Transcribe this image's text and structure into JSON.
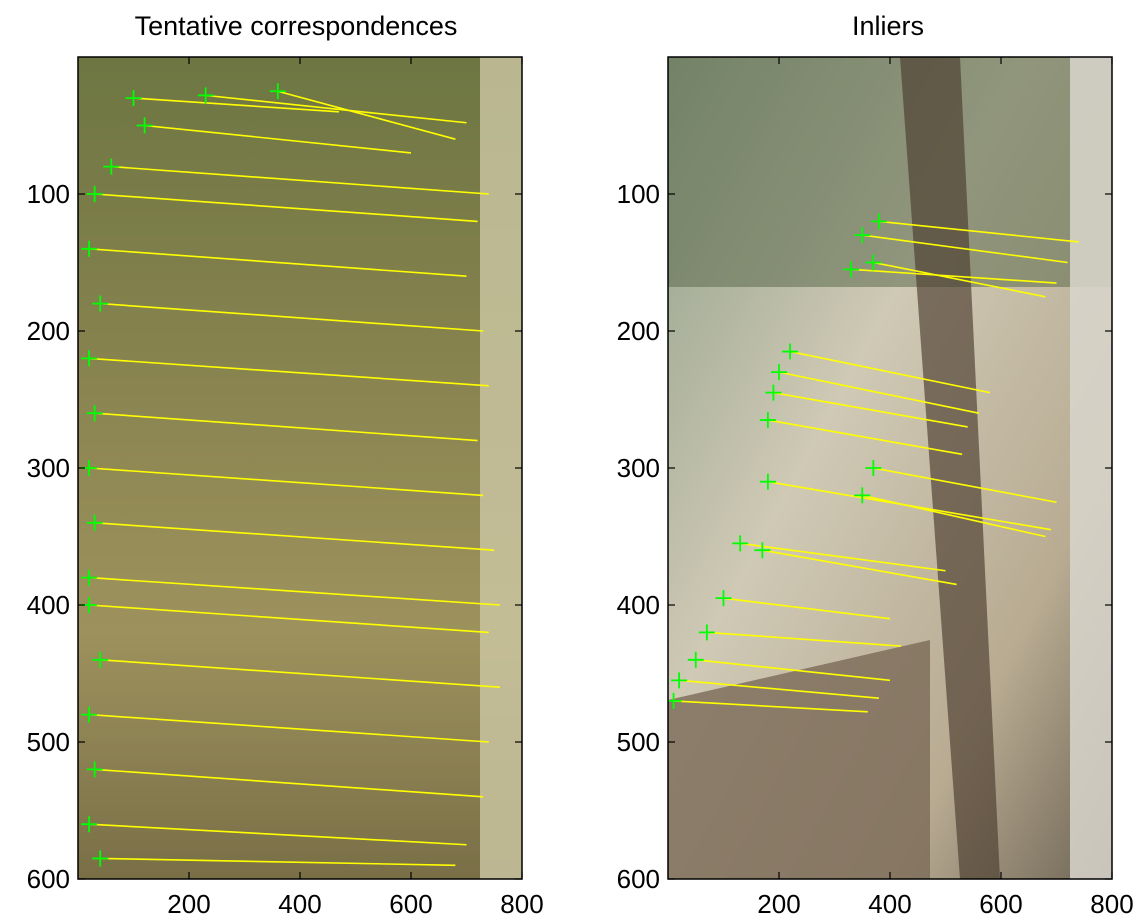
{
  "chart_data": [
    {
      "type": "scatter",
      "title": "Tentative correspondences",
      "xlabel": "",
      "ylabel": "",
      "xlim": [
        0,
        800
      ],
      "ylim": [
        600,
        0
      ],
      "xticks": [
        200,
        400,
        600,
        800
      ],
      "yticks": [
        100,
        200,
        300,
        400,
        500,
        600
      ],
      "image_extent": {
        "x": [
          0,
          800
        ],
        "y": [
          0,
          600
        ]
      },
      "marker_color": "#00ff00",
      "line_color": "#ffff00",
      "matches": [
        {
          "x1": 100,
          "y1": 30,
          "x2": 470,
          "y2": 40
        },
        {
          "x1": 230,
          "y1": 28,
          "x2": 700,
          "y2": 48
        },
        {
          "x1": 360,
          "y1": 25,
          "x2": 680,
          "y2": 60
        },
        {
          "x1": 120,
          "y1": 50,
          "x2": 600,
          "y2": 70
        },
        {
          "x1": 60,
          "y1": 80,
          "x2": 740,
          "y2": 100
        },
        {
          "x1": 30,
          "y1": 100,
          "x2": 720,
          "y2": 120
        },
        {
          "x1": 20,
          "y1": 140,
          "x2": 700,
          "y2": 160
        },
        {
          "x1": 40,
          "y1": 180,
          "x2": 730,
          "y2": 200
        },
        {
          "x1": 20,
          "y1": 220,
          "x2": 740,
          "y2": 240
        },
        {
          "x1": 30,
          "y1": 260,
          "x2": 720,
          "y2": 280
        },
        {
          "x1": 20,
          "y1": 300,
          "x2": 730,
          "y2": 320
        },
        {
          "x1": 30,
          "y1": 340,
          "x2": 750,
          "y2": 360
        },
        {
          "x1": 20,
          "y1": 380,
          "x2": 760,
          "y2": 400
        },
        {
          "x1": 20,
          "y1": 400,
          "x2": 740,
          "y2": 420
        },
        {
          "x1": 40,
          "y1": 440,
          "x2": 760,
          "y2": 460
        },
        {
          "x1": 20,
          "y1": 480,
          "x2": 740,
          "y2": 500
        },
        {
          "x1": 30,
          "y1": 520,
          "x2": 730,
          "y2": 540
        },
        {
          "x1": 20,
          "y1": 560,
          "x2": 700,
          "y2": 575
        },
        {
          "x1": 40,
          "y1": 585,
          "x2": 680,
          "y2": 590
        }
      ]
    },
    {
      "type": "scatter",
      "title": "Inliers",
      "xlabel": "",
      "ylabel": "",
      "xlim": [
        0,
        800
      ],
      "ylim": [
        600,
        0
      ],
      "xticks": [
        200,
        400,
        600,
        800
      ],
      "yticks": [
        100,
        200,
        300,
        400,
        500,
        600
      ],
      "image_extent": {
        "x": [
          0,
          800
        ],
        "y": [
          0,
          600
        ]
      },
      "marker_color": "#00ff00",
      "line_color": "#ffff00",
      "matches": [
        {
          "x1": 380,
          "y1": 120,
          "x2": 740,
          "y2": 135
        },
        {
          "x1": 350,
          "y1": 130,
          "x2": 720,
          "y2": 150
        },
        {
          "x1": 330,
          "y1": 155,
          "x2": 700,
          "y2": 165
        },
        {
          "x1": 370,
          "y1": 150,
          "x2": 680,
          "y2": 175
        },
        {
          "x1": 220,
          "y1": 215,
          "x2": 580,
          "y2": 245
        },
        {
          "x1": 200,
          "y1": 230,
          "x2": 560,
          "y2": 260
        },
        {
          "x1": 190,
          "y1": 245,
          "x2": 540,
          "y2": 270
        },
        {
          "x1": 180,
          "y1": 265,
          "x2": 530,
          "y2": 290
        },
        {
          "x1": 370,
          "y1": 300,
          "x2": 700,
          "y2": 325
        },
        {
          "x1": 180,
          "y1": 310,
          "x2": 690,
          "y2": 345
        },
        {
          "x1": 350,
          "y1": 320,
          "x2": 680,
          "y2": 350
        },
        {
          "x1": 130,
          "y1": 355,
          "x2": 500,
          "y2": 375
        },
        {
          "x1": 170,
          "y1": 360,
          "x2": 520,
          "y2": 385
        },
        {
          "x1": 100,
          "y1": 395,
          "x2": 400,
          "y2": 410
        },
        {
          "x1": 70,
          "y1": 420,
          "x2": 420,
          "y2": 430
        },
        {
          "x1": 50,
          "y1": 440,
          "x2": 400,
          "y2": 455
        },
        {
          "x1": 20,
          "y1": 455,
          "x2": 380,
          "y2": 468
        },
        {
          "x1": 10,
          "y1": 470,
          "x2": 360,
          "y2": 478
        }
      ]
    }
  ]
}
